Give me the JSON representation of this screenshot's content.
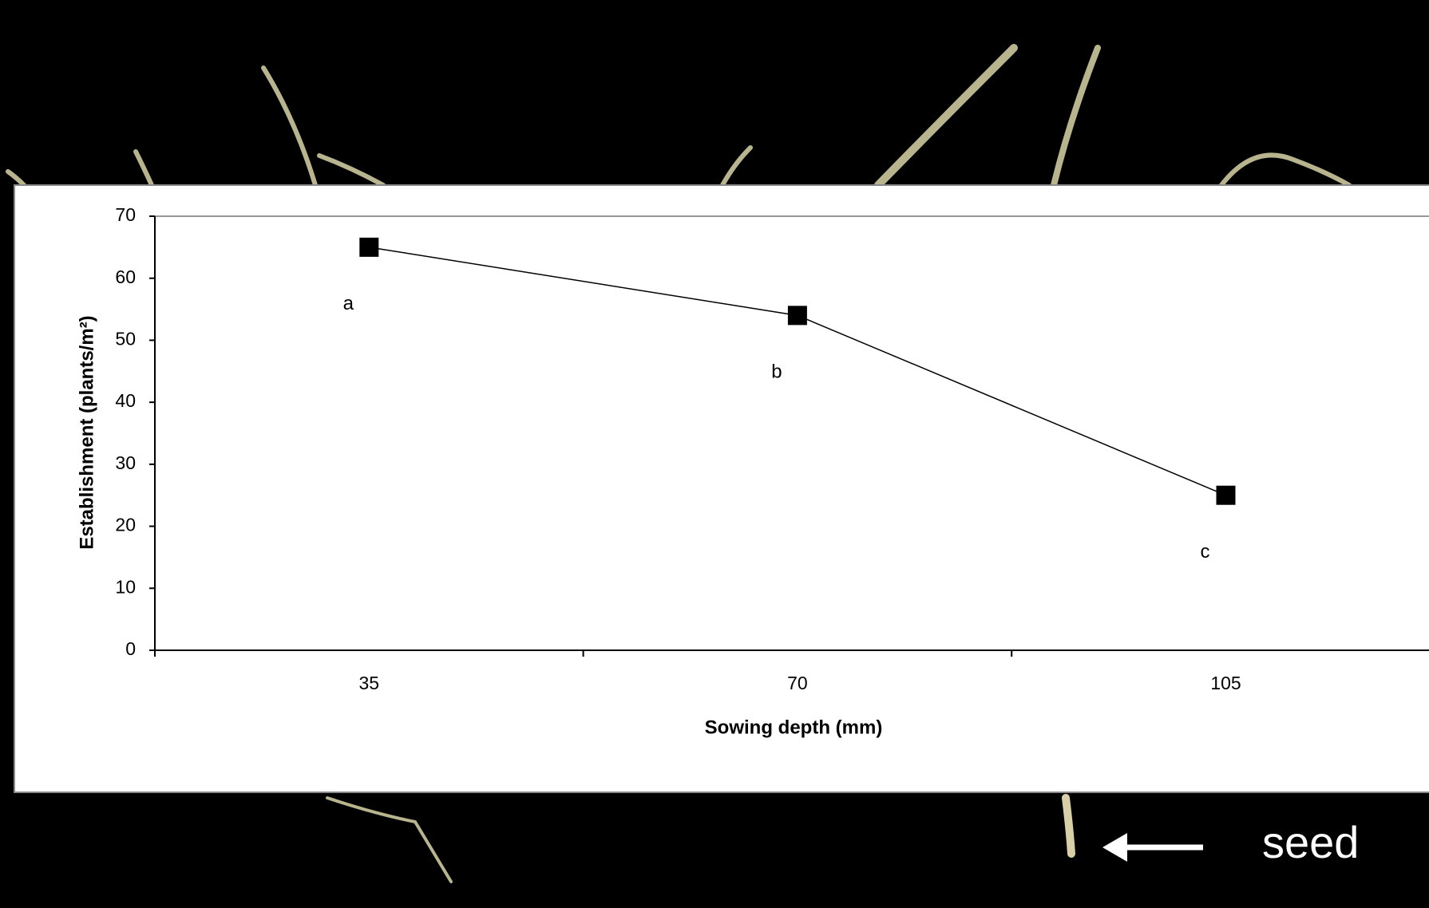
{
  "chart_data": {
    "type": "line",
    "x_label": "Sowing depth (mm)",
    "y_label": "Establishment (plants/m²)",
    "categories": [
      "35",
      "70",
      "105"
    ],
    "values": [
      65,
      54,
      25
    ],
    "color": "#000000",
    "annotations": [
      "a",
      "b",
      "c"
    ],
    "ylim": [
      0,
      70
    ],
    "yticks": [
      0,
      10,
      20,
      30,
      40,
      50,
      60,
      70
    ]
  },
  "photo_label": "seed"
}
